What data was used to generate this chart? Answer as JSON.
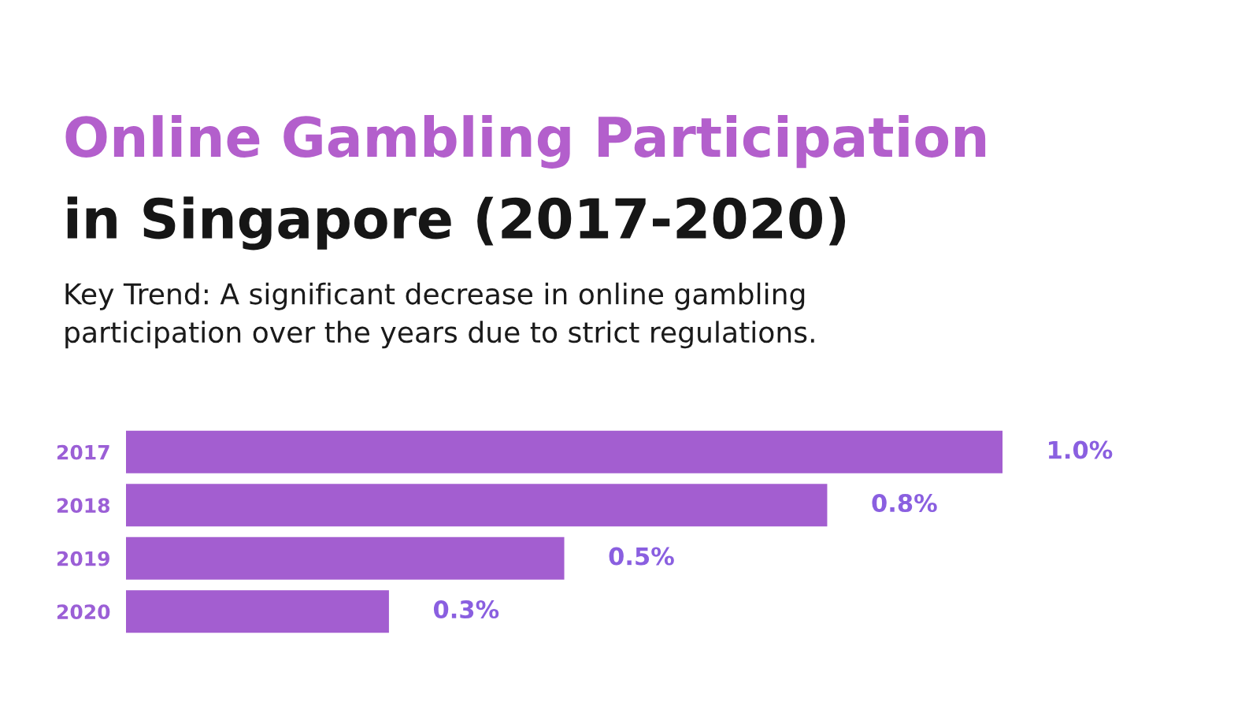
{
  "chart_data": {
    "type": "bar",
    "orientation": "horizontal",
    "title": "Online Gambling Participation\nin Singapore (2017-2020)",
    "subtitle": "Key Trend: A significant decrease in online gambling\nparticipation over the years due to strict regulations.",
    "categories": [
      "2017",
      "2018",
      "2019",
      "2020"
    ],
    "values": [
      1.0,
      0.8,
      0.5,
      0.3
    ],
    "value_labels": [
      "1.0%",
      "0.8%",
      "0.5%",
      "0.3%"
    ],
    "color": "#a35ed0",
    "tick_labels": "y",
    "grid": false,
    "legend": false
  }
}
